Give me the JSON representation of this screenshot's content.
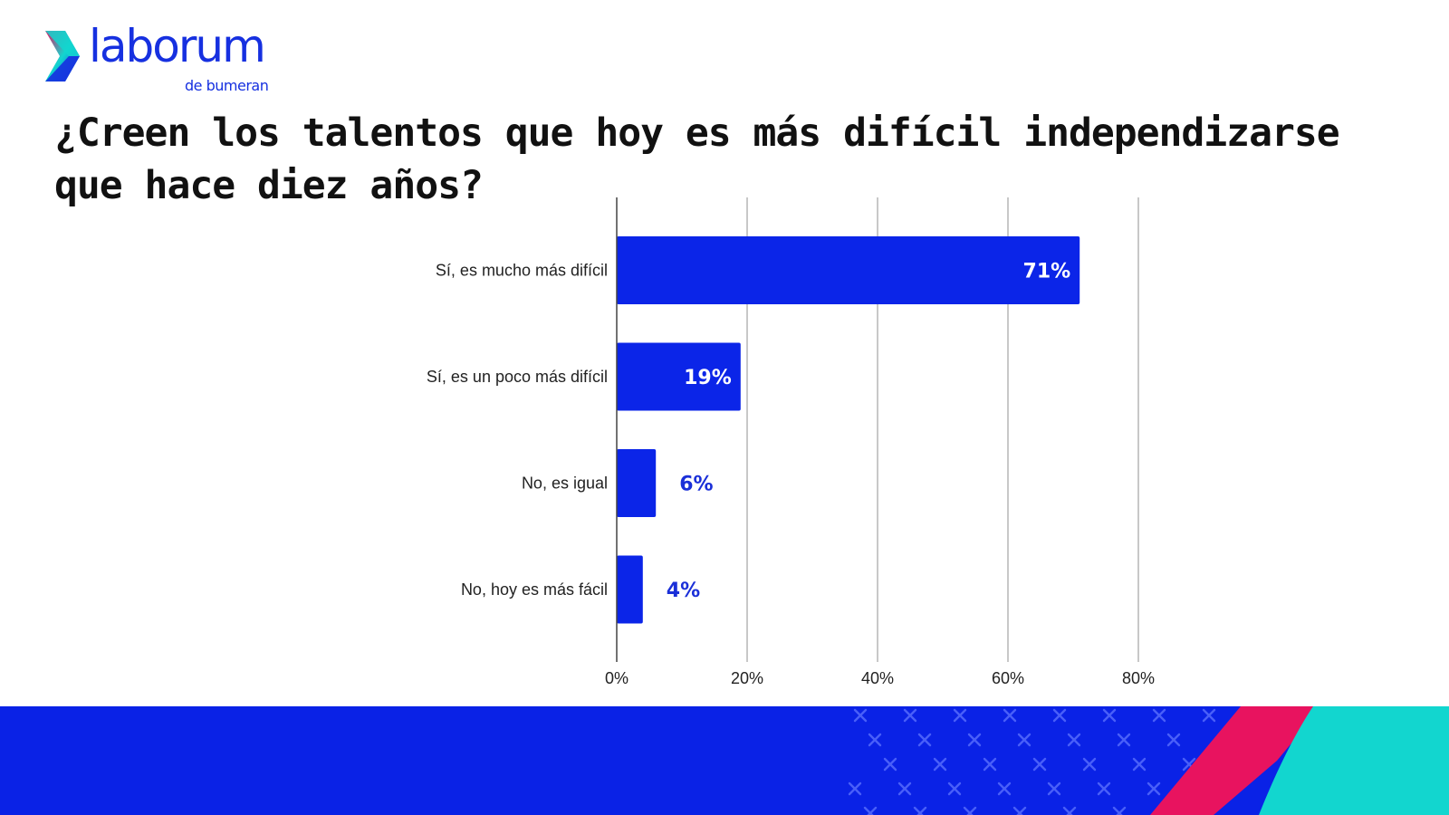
{
  "brand": {
    "name": "laborum",
    "subtitle": "de bumeran"
  },
  "colors": {
    "bar": "#0b25e8",
    "brand_blue": "#1630e0",
    "footer_blue": "#0a22e6",
    "footer_pink": "#e8135f",
    "footer_teal": "#12d6cf",
    "grid": "#c8c8c8"
  },
  "chart_data": {
    "type": "bar",
    "orientation": "horizontal",
    "title": "¿Creen los talentos que hoy es más difícil independizarse que hace diez años?",
    "categories": [
      "Sí, es mucho más difícil",
      "Sí, es un poco más difícil",
      "No, es igual",
      "No, hoy es más fácil"
    ],
    "values": [
      71,
      19,
      6,
      4
    ],
    "value_labels": [
      "71%",
      "19%",
      "6%",
      "4%"
    ],
    "xlim": [
      0,
      80
    ],
    "xticks": [
      0,
      20,
      40,
      60,
      80
    ],
    "xtick_labels": [
      "0%",
      "20%",
      "40%",
      "60%",
      "80%"
    ],
    "grid": true,
    "legend": "none"
  }
}
